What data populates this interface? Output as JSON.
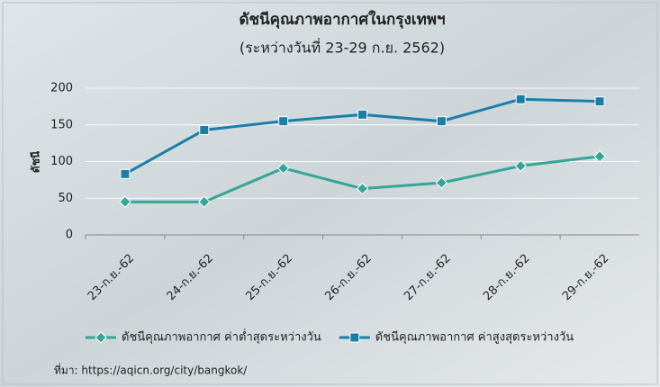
{
  "chart_data": {
    "type": "line",
    "title": "ดัชนีคุณภาพอากาศในกรุงเทพฯ",
    "subtitle": "(ระหว่างวันที่  23-29 ก.ย. 2562)",
    "y_label": "ดัชนี",
    "categories": [
      "23-ก.ย.-62",
      "24-ก.ย.-62",
      "25-ก.ย.-62",
      "26-ก.ย.-62",
      "27-ก.ย.-62",
      "28-ก.ย.-62",
      "29-ก.ย.-62"
    ],
    "series": [
      {
        "name": "ดัชนีคุณภาพอากาศ ค่าต่ำสุดระหว่างวัน",
        "color": "#34a596",
        "marker": "diamond",
        "values": [
          45,
          45,
          91,
          63,
          71,
          94,
          107
        ]
      },
      {
        "name": "ดัชนีคุณภาพอากาศ ค่าสูงสุดระหว่างวัน",
        "color": "#1a7ea6",
        "marker": "square",
        "values": [
          83,
          143,
          155,
          164,
          155,
          185,
          182
        ]
      }
    ],
    "ylim": [
      0,
      200
    ],
    "yticks": [
      0,
      50,
      100,
      150,
      200
    ],
    "grid": true,
    "legend": "bottom",
    "source": "ที่มา: https://aqicn.org/city/bangkok/"
  }
}
